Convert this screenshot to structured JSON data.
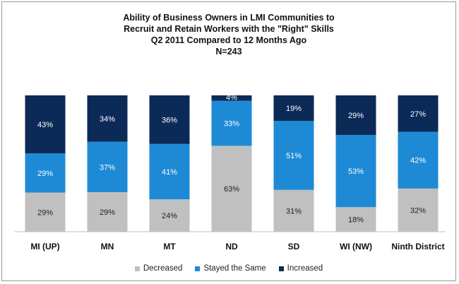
{
  "chart_data": {
    "type": "bar",
    "stacked": true,
    "percent": true,
    "title_lines": [
      "Ability of Business Owners in LMI Communities to",
      "Recruit and Retain Workers with the \"Right\" Skills",
      "Q2 2011 Compared to 12 Months Ago",
      "N=243"
    ],
    "categories": [
      "MI (UP)",
      "MN",
      "MT",
      "ND",
      "SD",
      "WI (NW)",
      "Ninth District"
    ],
    "series": [
      {
        "name": "Decreased",
        "color": "#c0c0c0",
        "values": [
          29,
          29,
          24,
          63,
          31,
          18,
          32
        ]
      },
      {
        "name": "Stayed the Same",
        "color": "#1e8ad6",
        "values": [
          29,
          37,
          41,
          33,
          51,
          53,
          42
        ]
      },
      {
        "name": "Increased",
        "color": "#0c2a57",
        "values": [
          43,
          34,
          36,
          4,
          19,
          29,
          27
        ]
      }
    ],
    "ylim": [
      0,
      100
    ],
    "legend_position": "bottom",
    "grid": false
  }
}
